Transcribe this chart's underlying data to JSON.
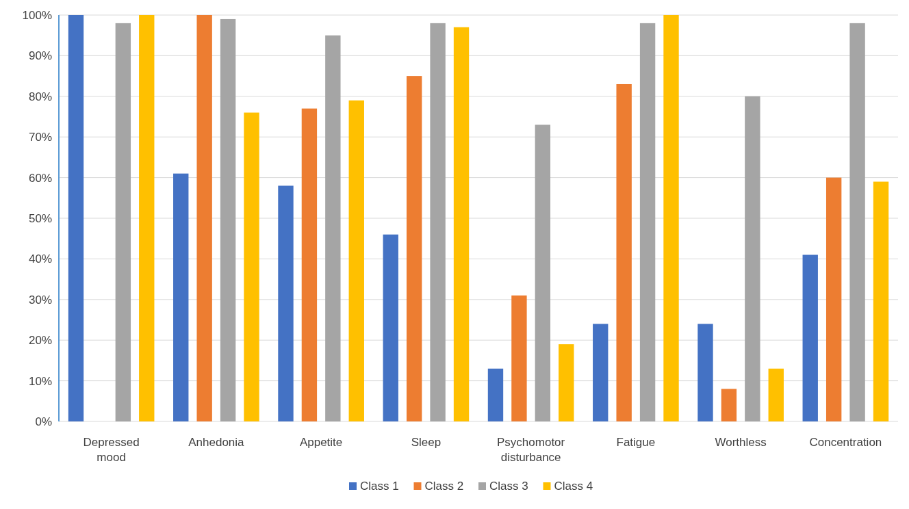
{
  "chart_data": {
    "type": "bar",
    "categories": [
      "Depressed mood",
      "Anhedonia",
      "Appetite",
      "Sleep",
      "Psychomotor disturbance",
      "Fatigue",
      "Worthless",
      "Concentration"
    ],
    "series": [
      {
        "name": "Class 1",
        "color": "#4472c4",
        "values": [
          100,
          61,
          58,
          46,
          13,
          24,
          24,
          41
        ]
      },
      {
        "name": "Class 2",
        "color": "#ed7d31",
        "values": [
          0,
          100,
          77,
          85,
          31,
          83,
          8,
          60
        ]
      },
      {
        "name": "Class 3",
        "color": "#a5a5a5",
        "values": [
          98,
          99,
          95,
          98,
          73,
          98,
          80,
          98
        ]
      },
      {
        "name": "Class 4",
        "color": "#ffc000",
        "values": [
          100,
          76,
          79,
          97,
          19,
          100,
          13,
          59
        ]
      }
    ],
    "ylim": [
      0,
      100
    ],
    "yticks": [
      {
        "value": 0,
        "label": "0%"
      },
      {
        "value": 10,
        "label": "10%"
      },
      {
        "value": 20,
        "label": "20%"
      },
      {
        "value": 30,
        "label": "30%"
      },
      {
        "value": 40,
        "label": "40%"
      },
      {
        "value": 50,
        "label": "50%"
      },
      {
        "value": 60,
        "label": "60%"
      },
      {
        "value": 70,
        "label": "70%"
      },
      {
        "value": 80,
        "label": "80%"
      },
      {
        "value": 90,
        "label": "90%"
      },
      {
        "value": 100,
        "label": "100%"
      }
    ],
    "grid": "y",
    "legend": "bottom"
  }
}
